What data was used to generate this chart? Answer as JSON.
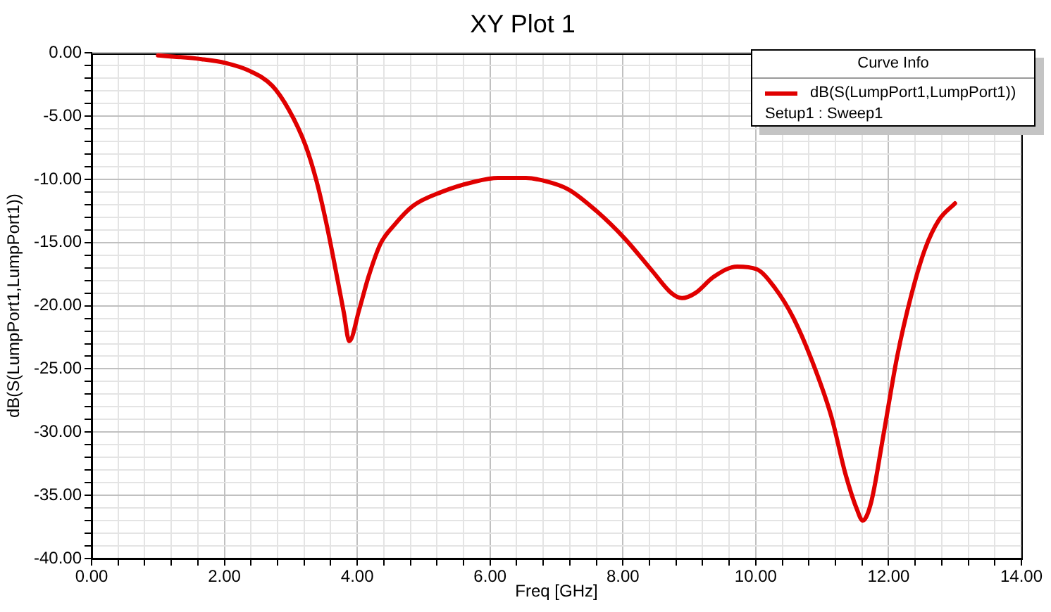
{
  "chart_data": {
    "type": "line",
    "title": "XY Plot 1",
    "xlabel": "Freq [GHz]",
    "ylabel": "dB(S(LumpPort1,LumpPort1))",
    "legend_title": "Curve Info",
    "annotations": [
      "Setup1 : Sweep1"
    ],
    "x": [
      1.0,
      1.66,
      2.02,
      2.37,
      2.72,
      2.97,
      3.22,
      3.39,
      3.54,
      3.68,
      3.8,
      3.88,
      4.03,
      4.17,
      4.35,
      4.56,
      4.84,
      5.27,
      5.76,
      6.12,
      6.54,
      6.8,
      7.18,
      7.6,
      8.03,
      8.45,
      8.73,
      8.89,
      9.09,
      9.37,
      9.72,
      10.01,
      10.29,
      10.57,
      10.85,
      11.14,
      11.35,
      11.53,
      11.61,
      11.74,
      11.92,
      12.13,
      12.34,
      12.55,
      12.76,
      13.0
    ],
    "series": [
      {
        "name": "dB(S(LumpPort1,LumpPort1))",
        "color": "#e00000",
        "values": [
          -0.2,
          -0.5,
          -0.8,
          -1.4,
          -2.6,
          -4.5,
          -7.3,
          -10.2,
          -13.6,
          -17.3,
          -20.6,
          -22.8,
          -20.3,
          -17.7,
          -15.1,
          -13.6,
          -12.1,
          -11.0,
          -10.2,
          -9.9,
          -9.9,
          -10.1,
          -10.8,
          -12.5,
          -14.7,
          -17.3,
          -19.0,
          -19.4,
          -19.0,
          -17.7,
          -16.9,
          -17.1,
          -18.6,
          -21.0,
          -24.4,
          -28.8,
          -33.3,
          -36.2,
          -37.0,
          -35.5,
          -30.3,
          -24.0,
          -19.2,
          -15.5,
          -13.2,
          -11.9
        ]
      }
    ],
    "xlim": [
      0,
      14
    ],
    "ylim": [
      -40,
      0
    ],
    "xticks": [
      {
        "value": 0,
        "label": "0.00"
      },
      {
        "value": 0.4,
        "label": null
      },
      {
        "value": 0.8,
        "label": null
      },
      {
        "value": 1.2,
        "label": null
      },
      {
        "value": 1.6,
        "label": null
      },
      {
        "value": 2,
        "label": "2.00"
      },
      {
        "value": 2.4,
        "label": null
      },
      {
        "value": 2.8,
        "label": null
      },
      {
        "value": 3.2,
        "label": null
      },
      {
        "value": 3.6,
        "label": null
      },
      {
        "value": 4,
        "label": "4.00"
      },
      {
        "value": 4.4,
        "label": null
      },
      {
        "value": 4.8,
        "label": null
      },
      {
        "value": 5.2,
        "label": null
      },
      {
        "value": 5.6,
        "label": null
      },
      {
        "value": 6,
        "label": "6.00"
      },
      {
        "value": 6.4,
        "label": null
      },
      {
        "value": 6.8,
        "label": null
      },
      {
        "value": 7.2,
        "label": null
      },
      {
        "value": 7.6,
        "label": null
      },
      {
        "value": 8,
        "label": "8.00"
      },
      {
        "value": 8.4,
        "label": null
      },
      {
        "value": 8.8,
        "label": null
      },
      {
        "value": 9.2,
        "label": null
      },
      {
        "value": 9.6,
        "label": null
      },
      {
        "value": 10,
        "label": "10.00"
      },
      {
        "value": 10.4,
        "label": null
      },
      {
        "value": 10.8,
        "label": null
      },
      {
        "value": 11.2,
        "label": null
      },
      {
        "value": 11.6,
        "label": null
      },
      {
        "value": 12,
        "label": "12.00"
      },
      {
        "value": 12.4,
        "label": null
      },
      {
        "value": 12.8,
        "label": null
      },
      {
        "value": 13.2,
        "label": null
      },
      {
        "value": 13.6,
        "label": null
      },
      {
        "value": 14,
        "label": "14.00"
      }
    ],
    "yticks": [
      {
        "value": -40,
        "label": "-40.00"
      },
      {
        "value": -39,
        "label": null
      },
      {
        "value": -38,
        "label": null
      },
      {
        "value": -37,
        "label": null
      },
      {
        "value": -36,
        "label": null
      },
      {
        "value": -35,
        "label": "-35.00"
      },
      {
        "value": -34,
        "label": null
      },
      {
        "value": -33,
        "label": null
      },
      {
        "value": -32,
        "label": null
      },
      {
        "value": -31,
        "label": null
      },
      {
        "value": -30,
        "label": "-30.00"
      },
      {
        "value": -29,
        "label": null
      },
      {
        "value": -28,
        "label": null
      },
      {
        "value": -27,
        "label": null
      },
      {
        "value": -26,
        "label": null
      },
      {
        "value": -25,
        "label": "-25.00"
      },
      {
        "value": -24,
        "label": null
      },
      {
        "value": -23,
        "label": null
      },
      {
        "value": -22,
        "label": null
      },
      {
        "value": -21,
        "label": null
      },
      {
        "value": -20,
        "label": "-20.00"
      },
      {
        "value": -19,
        "label": null
      },
      {
        "value": -18,
        "label": null
      },
      {
        "value": -17,
        "label": null
      },
      {
        "value": -16,
        "label": null
      },
      {
        "value": -15,
        "label": "-15.00"
      },
      {
        "value": -14,
        "label": null
      },
      {
        "value": -13,
        "label": null
      },
      {
        "value": -12,
        "label": null
      },
      {
        "value": -11,
        "label": null
      },
      {
        "value": -10,
        "label": "-10.00"
      },
      {
        "value": -9,
        "label": null
      },
      {
        "value": -8,
        "label": null
      },
      {
        "value": -7,
        "label": null
      },
      {
        "value": -6,
        "label": null
      },
      {
        "value": -5,
        "label": "-5.00"
      },
      {
        "value": -4,
        "label": null
      },
      {
        "value": -3,
        "label": null
      },
      {
        "value": -2,
        "label": null
      },
      {
        "value": -1,
        "label": null
      },
      {
        "value": 0,
        "label": "0.00"
      }
    ],
    "grid": true,
    "legend": "top right",
    "line_style": "solid"
  }
}
